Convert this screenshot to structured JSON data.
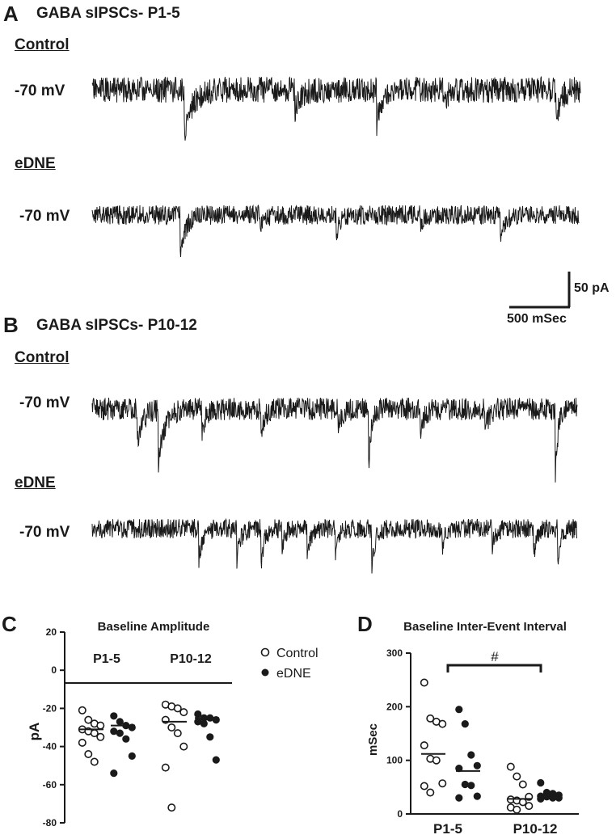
{
  "panels": {
    "A": {
      "letter": "A",
      "title": "GABA sIPSCs- P1-5",
      "control_label": "Control",
      "edne_label": "eDNE",
      "control_holding": "-70 mV",
      "edne_holding": "-70 mV"
    },
    "B": {
      "letter": "B",
      "title": "GABA sIPSCs- P10-12",
      "control_label": "Control",
      "edne_label": "eDNE",
      "control_holding": "-70 mV",
      "edne_holding": "-70 mV"
    },
    "C": {
      "letter": "C"
    },
    "D": {
      "letter": "D"
    }
  },
  "scale_bar": {
    "current": "50 pA",
    "time": "500 mSec"
  },
  "colors": {
    "ink": "#1a1a1a",
    "background": "#ffffff"
  },
  "chart_data": [
    {
      "type": "scatter",
      "title": "Baseline Amplitude",
      "ylabel": "pA",
      "xlabel": "",
      "ylim": [
        -80,
        20
      ],
      "yticks": [
        20,
        0,
        -20,
        -40,
        -60,
        -80
      ],
      "legend": [
        "Control",
        "eDNE"
      ],
      "legend_position": "right",
      "groups": [
        {
          "label": "P1-5",
          "series": [
            {
              "name": "Control",
              "marker": "open-circle",
              "values": [
                -21,
                -26,
                -28,
                -29,
                -31,
                -32,
                -33,
                -35,
                -38,
                -44,
                -48
              ],
              "mean": -31
            },
            {
              "name": "eDNE",
              "marker": "filled-circle",
              "values": [
                -24,
                -27,
                -29,
                -30,
                -32,
                -33,
                -36,
                -45,
                -54
              ],
              "mean": -29
            }
          ]
        },
        {
          "label": "P10-12",
          "series": [
            {
              "name": "Control",
              "marker": "open-circle",
              "values": [
                -18,
                -19,
                -20,
                -22,
                -26,
                -30,
                -33,
                -40,
                -51,
                -72
              ],
              "mean": -27
            },
            {
              "name": "eDNE",
              "marker": "filled-circle",
              "values": [
                -23,
                -25,
                -25,
                -26,
                -27,
                -28,
                -35,
                -47
              ],
              "mean": -25
            }
          ]
        }
      ]
    },
    {
      "type": "scatter",
      "title": "Baseline Inter-Event Interval",
      "ylabel": "mSec",
      "xlabel": "",
      "ylim": [
        0,
        300
      ],
      "yticks": [
        0,
        100,
        200,
        300
      ],
      "categories": [
        "P1-5",
        "P10-12"
      ],
      "annotation": "#",
      "groups": [
        {
          "label": "P1-5",
          "series": [
            {
              "name": "Control",
              "marker": "open-circle",
              "values": [
                245,
                178,
                172,
                168,
                128,
                103,
                100,
                57,
                52,
                40
              ],
              "mean": 112
            },
            {
              "name": "eDNE",
              "marker": "filled-circle",
              "values": [
                195,
                168,
                110,
                90,
                85,
                55,
                53,
                33,
                30
              ],
              "mean": 80
            }
          ]
        },
        {
          "label": "P10-12",
          "series": [
            {
              "name": "Control",
              "marker": "open-circle",
              "values": [
                88,
                70,
                55,
                32,
                27,
                25,
                22,
                15,
                12,
                8
              ],
              "mean": 28
            },
            {
              "name": "eDNE",
              "marker": "filled-circle",
              "values": [
                58,
                40,
                38,
                35,
                33,
                32,
                30,
                30,
                28
              ],
              "mean": 36
            }
          ]
        }
      ]
    }
  ]
}
